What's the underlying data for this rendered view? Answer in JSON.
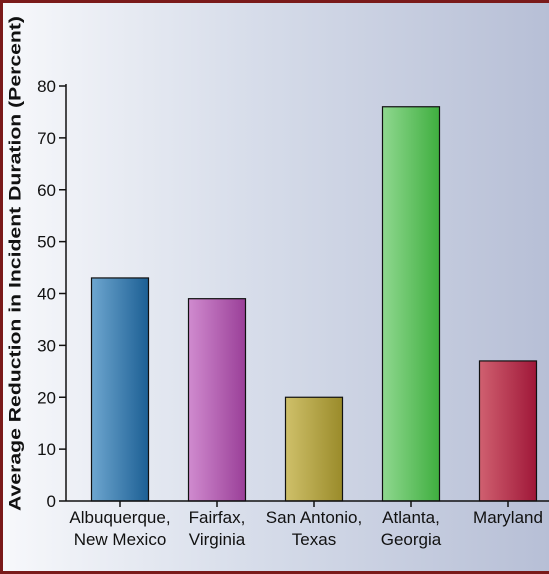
{
  "chart_data": {
    "type": "bar",
    "title": "",
    "xlabel": "",
    "ylabel": "Average Reduction in Incident Duration (Percent)",
    "categories": [
      [
        "Albuquerque,",
        "New Mexico"
      ],
      [
        "Fairfax,",
        "Virginia"
      ],
      [
        "San Antonio,",
        "Texas"
      ],
      [
        "Atlanta,",
        "Georgia"
      ],
      [
        "Maryland"
      ]
    ],
    "values": [
      43,
      39,
      20,
      76,
      27
    ],
    "ylim": [
      0,
      80
    ],
    "yticks": [
      0,
      10,
      20,
      30,
      40,
      50,
      60,
      70,
      80
    ],
    "grid": false,
    "bar_colors": [
      [
        "#1c5f94",
        "#6ea6cf"
      ],
      [
        "#9a3f98",
        "#d08bcf"
      ],
      [
        "#9a8b2a",
        "#cfc06a"
      ],
      [
        "#3fae3f",
        "#8fd88f"
      ],
      [
        "#9f1738",
        "#d06070"
      ]
    ],
    "frame_color": "#7a1a1a"
  }
}
